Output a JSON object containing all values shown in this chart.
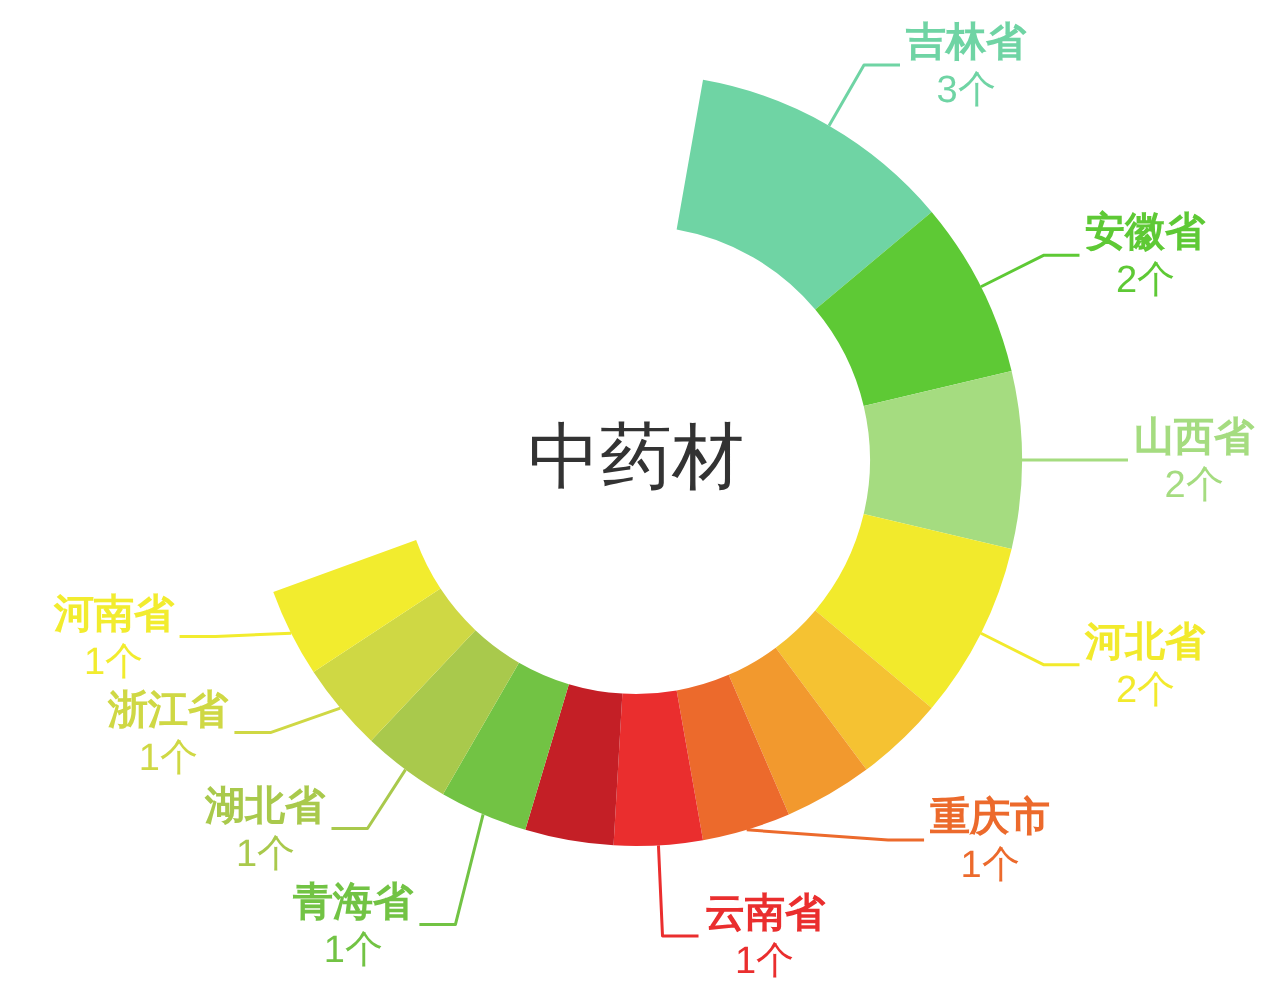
{
  "chart_data": {
    "type": "donut",
    "title": "中药材",
    "categories": [
      "吉林省",
      "安徽省",
      "山西省",
      "河北省",
      null,
      null,
      "重庆市",
      "云南省",
      null,
      "青海省",
      "湖北省",
      "浙江省",
      "河南省"
    ],
    "values": [
      3,
      2,
      2,
      2,
      1,
      1,
      1,
      1,
      1,
      1,
      1,
      1,
      1
    ],
    "colors": [
      "#6fd4a4",
      "#5ec935",
      "#a5dc80",
      "#f2ea2c",
      "#f5c232",
      "#f2992e",
      "#ec6a2c",
      "#ea2e2e",
      "#c41f26",
      "#72c344",
      "#a9c94c",
      "#cfd844",
      "#f2ec2e"
    ],
    "value_labels": [
      "3个",
      "2个",
      "2个",
      "2个",
      null,
      null,
      "1个",
      "1个",
      null,
      "1个",
      "1个",
      "1个",
      "1个"
    ]
  }
}
